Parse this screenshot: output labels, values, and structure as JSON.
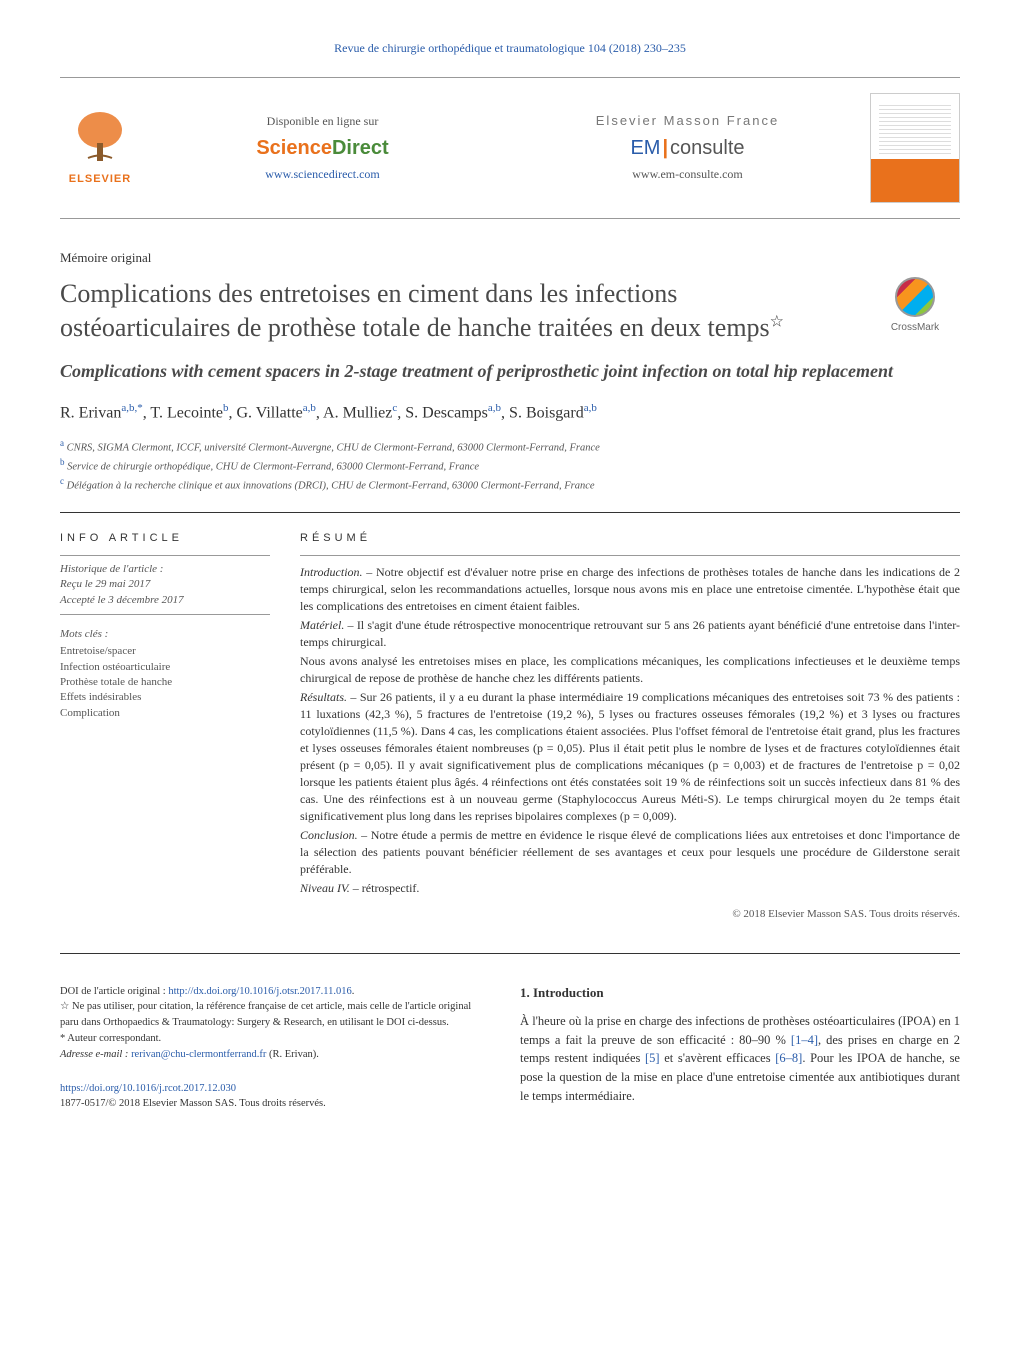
{
  "journal_ref": "Revue de chirurgie orthopédique et traumatologique 104 (2018) 230–235",
  "banner": {
    "elsevier_label": "ELSEVIER",
    "sd_avail": "Disponible en ligne sur",
    "sd_sci": "Science",
    "sd_dir": "Direct",
    "sd_url": "www.sciencedirect.com",
    "em_title": "Elsevier Masson France",
    "em_em": "EM",
    "em_consulte": "consulte",
    "em_url": "www.em-consulte.com"
  },
  "article_type": "Mémoire original",
  "title_fr": "Complications des entretoises en ciment dans les infections ostéoarticulaires de prothèse totale de hanche traitées en deux temps",
  "title_star": "☆",
  "title_en": "Complications with cement spacers in 2-stage treatment of periprosthetic joint infection on total hip replacement",
  "crossmark_label": "CrossMark",
  "authors_html": "R. Erivan<sup>a,b,*</sup>, T. Lecointe<sup>b</sup>, G. Villatte<sup>a,b</sup>, A. Mulliez<sup>c</sup>, S. Descamps<sup>a,b</sup>, S. Boisgard<sup>a,b</sup>",
  "authors": [
    {
      "name": "R. Erivan",
      "aff": "a,b,*"
    },
    {
      "name": "T. Lecointe",
      "aff": "b"
    },
    {
      "name": "G. Villatte",
      "aff": "a,b"
    },
    {
      "name": "A. Mulliez",
      "aff": "c"
    },
    {
      "name": "S. Descamps",
      "aff": "a,b"
    },
    {
      "name": "S. Boisgard",
      "aff": "a,b"
    }
  ],
  "affiliations": [
    {
      "sup": "a",
      "text": "CNRS, SIGMA Clermont, ICCF, université Clermont-Auvergne, CHU de Clermont-Ferrand, 63000 Clermont-Ferrand, France"
    },
    {
      "sup": "b",
      "text": "Service de chirurgie orthopédique, CHU de Clermont-Ferrand, 63000 Clermont-Ferrand, France"
    },
    {
      "sup": "c",
      "text": "Délégation à la recherche clinique et aux innovations (DRCI), CHU de Clermont-Ferrand, 63000 Clermont-Ferrand, France"
    }
  ],
  "info": {
    "head": "INFO ARTICLE",
    "hist_label": "Historique de l'article :",
    "received": "Reçu le 29 mai 2017",
    "accepted": "Accepté le 3 décembre 2017",
    "kw_head": "Mots clés :",
    "keywords": [
      "Entretoise/spacer",
      "Infection ostéoarticulaire",
      "Prothèse totale de hanche",
      "Effets indésirables",
      "Complication"
    ]
  },
  "resume": {
    "head": "RÉSUMÉ",
    "intro_lead": "Introduction. –",
    "intro": "Notre objectif est d'évaluer notre prise en charge des infections de prothèses totales de hanche dans les indications de 2 temps chirurgical, selon les recommandations actuelles, lorsque nous avons mis en place une entretoise cimentée. L'hypothèse était que les complications des entretoises en ciment étaient faibles.",
    "mat_lead": "Matériel. –",
    "mat": "Il s'agit d'une étude rétrospective monocentrique retrouvant sur 5 ans 26 patients ayant bénéficié d'une entretoise dans l'inter-temps chirurgical.",
    "mat2": "Nous avons analysé les entretoises mises en place, les complications mécaniques, les complications infectieuses et le deuxième temps chirurgical de repose de prothèse de hanche chez les différents patients.",
    "res_lead": "Résultats. –",
    "res": "Sur 26 patients, il y a eu durant la phase intermédiaire 19 complications mécaniques des entretoises soit 73 % des patients : 11 luxations (42,3 %), 5 fractures de l'entretoise (19,2 %), 5 lyses ou fractures osseuses fémorales (19,2 %) et 3 lyses ou fractures cotyloïdiennes (11,5 %). Dans 4 cas, les complications étaient associées. Plus l'offset fémoral de l'entretoise était grand, plus les fractures et lyses osseuses fémorales étaient nombreuses (p = 0,05). Plus il était petit plus le nombre de lyses et de fractures cotyloïdiennes était présent (p = 0,05). Il y avait significativement plus de complications mécaniques (p = 0,003) et de fractures de l'entretoise p = 0,02 lorsque les patients étaient plus âgés. 4 réinfections ont étés constatées soit 19 % de réinfections soit un succès infectieux dans 81 % des cas. Une des réinfections est à un nouveau germe (Staphylococcus Aureus Méti-S). Le temps chirurgical moyen du 2e temps était significativement plus long dans les reprises bipolaires complexes (p = 0,009).",
    "conc_lead": "Conclusion. –",
    "conc": "Notre étude a permis de mettre en évidence le risque élevé de complications liées aux entretoises et donc l'importance de la sélection des patients pouvant bénéficier réellement de ses avantages et ceux pour lesquels une procédure de Gilderstone serait préférable.",
    "niveau_lead": "Niveau IV. –",
    "niveau": "rétrospectif.",
    "copyright": "© 2018 Elsevier Masson SAS. Tous droits réservés."
  },
  "intro_section": {
    "head": "1. Introduction",
    "body_pre": "À l'heure où la prise en charge des infections de prothèses ostéoarticulaires (IPOA) en 1 temps a fait la preuve de son efficacité : 80–90 % ",
    "ref1": "[1–4]",
    "body_mid1": ", des prises en charge en 2 temps restent indiquées ",
    "ref2": "[5]",
    "body_mid2": " et s'avèrent efficaces ",
    "ref3": "[6–8]",
    "body_post": ". Pour les IPOA de hanche, se pose la question de la mise en place d'une entretoise cimentée aux antibiotiques durant le temps intermédiaire."
  },
  "footnotes": {
    "doi_label": "DOI de l'article original : ",
    "doi_orig": "http://dx.doi.org/10.1016/j.otsr.2017.11.016",
    "star_note": "Ne pas utiliser, pour citation, la référence française de cet article, mais celle de l'article original paru dans Orthopaedics & Traumatology: Surgery & Research, en utilisant le DOI ci-dessus.",
    "corr_label": "* Auteur correspondant.",
    "email_label": "Adresse e-mail : ",
    "email": "rerivan@chu-clermontferrand.fr",
    "email_who": " (R. Erivan).",
    "doi_this": "https://doi.org/10.1016/j.rcot.2017.12.030",
    "issn": "1877-0517/© 2018 Elsevier Masson SAS. Tous droits réservés."
  },
  "colors": {
    "link": "#2a5caa",
    "orange": "#e9711c",
    "green": "#4a8b3a",
    "text": "#333333",
    "muted": "#555555"
  }
}
